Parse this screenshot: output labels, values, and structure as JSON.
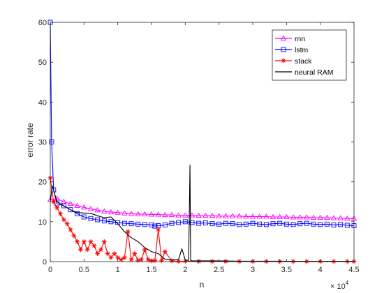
{
  "chart_data": {
    "type": "line",
    "xlabel": "n",
    "ylabel": "error rate",
    "x_multiplier_label": "× 10",
    "x_multiplier_exp": "4",
    "xlim": [
      0,
      4.5
    ],
    "ylim": [
      0,
      60
    ],
    "xticks": [
      0,
      0.5,
      1,
      1.5,
      2,
      2.5,
      3,
      3.5,
      4,
      4.5
    ],
    "xtick_labels": [
      "0",
      "0.5",
      "1",
      "1.5",
      "2",
      "2.5",
      "3",
      "3.5",
      "4",
      "4.5"
    ],
    "yticks": [
      0,
      10,
      20,
      30,
      40,
      50,
      60
    ],
    "ytick_labels": [
      "0",
      "10",
      "20",
      "30",
      "40",
      "50",
      "60"
    ],
    "legend_position": "top-right",
    "series": [
      {
        "name": "rnn",
        "color": "#ff00ff",
        "marker": "triangle",
        "x": [
          0,
          0.1,
          0.2,
          0.3,
          0.4,
          0.5,
          0.6,
          0.7,
          0.8,
          0.9,
          1.0,
          1.1,
          1.2,
          1.3,
          1.4,
          1.5,
          1.6,
          1.7,
          1.8,
          1.9,
          2.0,
          2.1,
          2.2,
          2.3,
          2.4,
          2.5,
          2.6,
          2.7,
          2.8,
          2.9,
          3.0,
          3.1,
          3.2,
          3.3,
          3.4,
          3.5,
          3.6,
          3.7,
          3.8,
          3.9,
          4.0,
          4.1,
          4.2,
          4.3,
          4.4,
          4.5
        ],
        "y": [
          15.5,
          15.8,
          15.0,
          14.5,
          14.0,
          13.6,
          13.2,
          12.9,
          12.6,
          12.4,
          12.3,
          12.1,
          12.0,
          11.9,
          11.9,
          11.8,
          11.8,
          11.7,
          11.7,
          11.6,
          11.6,
          11.6,
          11.5,
          11.5,
          11.5,
          11.4,
          11.4,
          11.4,
          11.4,
          11.3,
          11.3,
          11.3,
          11.3,
          11.2,
          11.2,
          11.2,
          11.1,
          11.1,
          11.1,
          11.0,
          11.0,
          11.0,
          10.9,
          10.9,
          10.8,
          10.8
        ]
      },
      {
        "name": "lstm",
        "color": "#0000ff",
        "marker": "square",
        "x": [
          0,
          0.02,
          0.05,
          0.1,
          0.2,
          0.3,
          0.4,
          0.5,
          0.6,
          0.7,
          0.8,
          0.9,
          1.0,
          1.1,
          1.2,
          1.3,
          1.4,
          1.5,
          1.55,
          1.6,
          1.7,
          1.8,
          1.9,
          2.0,
          2.1,
          2.2,
          2.3,
          2.4,
          2.5,
          2.6,
          2.7,
          2.8,
          2.9,
          3.0,
          3.1,
          3.2,
          3.3,
          3.4,
          3.5,
          3.6,
          3.7,
          3.8,
          3.9,
          4.0,
          4.1,
          4.2,
          4.3,
          4.4,
          4.5
        ],
        "y": [
          60,
          30,
          18,
          14.5,
          14.0,
          13.0,
          12.0,
          11.2,
          10.8,
          10.5,
          10.2,
          10.0,
          9.8,
          9.6,
          9.5,
          9.4,
          9.3,
          9.2,
          8.9,
          9.0,
          9.2,
          9.6,
          9.8,
          10.0,
          9.8,
          9.6,
          9.7,
          9.5,
          9.4,
          9.6,
          9.5,
          9.3,
          9.4,
          9.6,
          9.4,
          9.3,
          9.5,
          9.6,
          9.4,
          9.3,
          9.5,
          9.6,
          9.4,
          9.3,
          9.4,
          9.2,
          9.3,
          9.1,
          9.0
        ]
      },
      {
        "name": "stack",
        "color": "#ff0000",
        "marker": "asterisk",
        "x": [
          0,
          0.05,
          0.1,
          0.15,
          0.2,
          0.25,
          0.3,
          0.35,
          0.4,
          0.45,
          0.5,
          0.55,
          0.6,
          0.65,
          0.7,
          0.75,
          0.8,
          0.85,
          0.9,
          0.95,
          1.0,
          1.05,
          1.1,
          1.15,
          1.2,
          1.25,
          1.3,
          1.35,
          1.4,
          1.45,
          1.5,
          1.55,
          1.6,
          1.65,
          1.7,
          1.8,
          1.9,
          2.0,
          2.2,
          2.4,
          2.6,
          2.8,
          3.0,
          3.2,
          3.4,
          3.6,
          3.8,
          4.0,
          4.2,
          4.4,
          4.5
        ],
        "y": [
          21,
          15,
          13.5,
          12,
          10.5,
          9.5,
          8,
          6.5,
          5,
          3,
          5,
          3,
          5,
          4,
          2,
          3,
          5,
          2,
          1,
          2,
          1,
          0.5,
          1,
          7.5,
          0.5,
          2,
          0.3,
          0.5,
          3,
          0.5,
          0.2,
          0.3,
          8,
          0.3,
          2.5,
          0.2,
          0.1,
          0.1,
          0.05,
          0.05,
          0.05,
          0.05,
          0.05,
          0.05,
          0.05,
          0.05,
          0.05,
          0.05,
          0.05,
          0.05,
          0.05
        ]
      },
      {
        "name": "neural RAM",
        "color": "#000000",
        "marker": "none",
        "x": [
          0,
          0.03,
          0.1,
          0.2,
          0.3,
          0.4,
          0.5,
          0.6,
          0.7,
          0.8,
          0.9,
          1.0,
          1.1,
          1.2,
          1.3,
          1.4,
          1.5,
          1.6,
          1.7,
          1.8,
          1.9,
          1.95,
          2.0,
          2.05,
          2.07,
          2.08,
          2.1,
          2.2,
          2.4,
          2.6,
          2.8,
          3.0,
          3.2,
          3.4,
          3.6,
          3.8,
          4.0,
          4.2,
          4.4,
          4.5
        ],
        "y": [
          15,
          19,
          15,
          14,
          13,
          12.3,
          12.2,
          12.1,
          11.5,
          11.0,
          11.2,
          9.5,
          7.5,
          6.0,
          5.0,
          3.5,
          2.5,
          2.0,
          0.6,
          0.4,
          0.5,
          3.2,
          0.4,
          0.3,
          24.2,
          0.3,
          0.2,
          0.2,
          0.2,
          0.15,
          0.1,
          0.1,
          0.1,
          0.1,
          0.05,
          0.05,
          0.05,
          0.05,
          0.05,
          0.05
        ]
      }
    ]
  }
}
